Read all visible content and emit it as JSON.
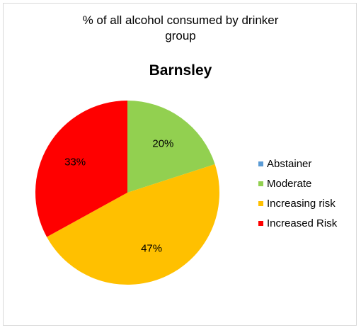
{
  "chart_data": {
    "type": "pie",
    "title_lines": [
      "% of all alcohol consumed  by drinker",
      "group"
    ],
    "subtitle": "Barnsley",
    "categories": [
      "Abstainer",
      "Moderate",
      "Increasing risk",
      "Increased Risk"
    ],
    "values": [
      0,
      20,
      47,
      33
    ],
    "data_labels": [
      "",
      "20%",
      "47%",
      "33%"
    ],
    "colors": [
      "#5b9bd5",
      "#92d050",
      "#ffc000",
      "#ff0000"
    ],
    "legend_position": "right",
    "start_angle_deg": 0,
    "direction": "clockwise"
  }
}
